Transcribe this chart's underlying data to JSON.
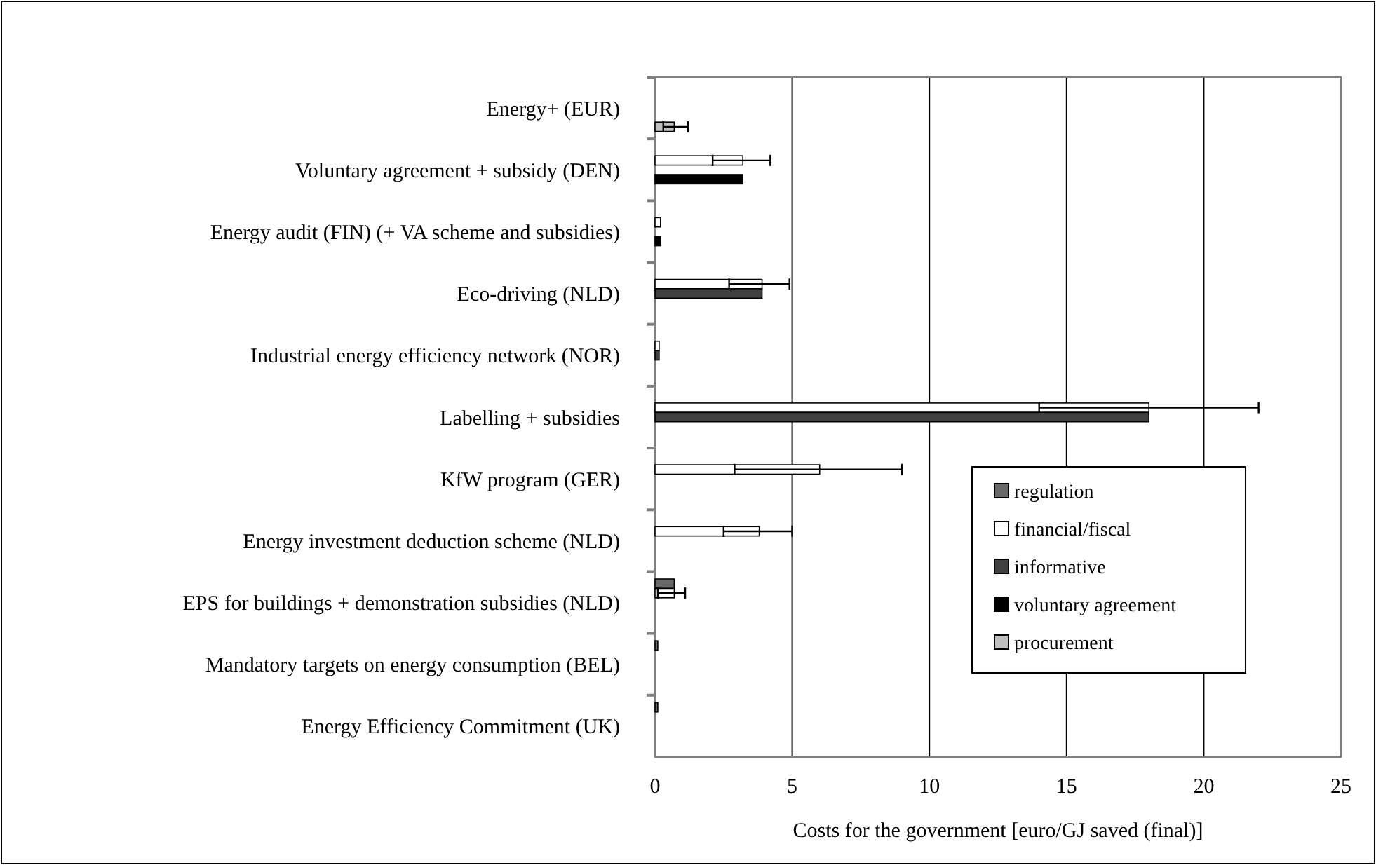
{
  "chart_data": {
    "type": "bar",
    "orientation": "horizontal",
    "xlabel": "Costs for the government [euro/GJ saved (final)]",
    "categories": [
      "Energy+ (EUR)",
      "Voluntary agreement + subsidy (DEN)",
      "Energy audit (FIN) (+ VA scheme and subsidies)",
      "Eco-driving (NLD)",
      "Industrial energy efficiency network (NOR)",
      "Labelling + subsidies",
      "KfW program (GER)",
      "Energy investment deduction scheme (NLD)",
      "EPS for buildings + demonstration subsidies (NLD)",
      "Mandatory targets on energy consumption (BEL)",
      "Energy Efficiency Commitment  (UK)"
    ],
    "series": [
      {
        "name": "regulation",
        "color": "#696969",
        "values": [
          null,
          null,
          null,
          null,
          null,
          null,
          null,
          null,
          0.7,
          0.1,
          0.1
        ]
      },
      {
        "name": "financial/fiscal",
        "color": "#ffffff",
        "values": [
          null,
          3.2,
          0.2,
          3.9,
          0.15,
          18,
          6.0,
          3.8,
          0.7,
          null,
          null
        ],
        "errors": [
          null,
          [
            2.1,
            4.2
          ],
          null,
          [
            2.7,
            4.9
          ],
          null,
          [
            14,
            22
          ],
          [
            2.9,
            9.0
          ],
          [
            2.5,
            5.0
          ],
          [
            0.1,
            1.1
          ],
          null,
          null
        ]
      },
      {
        "name": "informative",
        "color": "#404040",
        "values": [
          null,
          null,
          null,
          3.9,
          0.15,
          18,
          null,
          null,
          null,
          null,
          null
        ]
      },
      {
        "name": "voluntary agreement",
        "color": "#000000",
        "values": [
          null,
          3.2,
          0.2,
          null,
          null,
          null,
          null,
          null,
          null,
          null,
          null
        ]
      },
      {
        "name": "procurement",
        "color": "#c0c0c0",
        "values": [
          0.7,
          null,
          null,
          null,
          null,
          null,
          null,
          null,
          null,
          null,
          null
        ],
        "errors": [
          [
            0.3,
            1.2
          ],
          null,
          null,
          null,
          null,
          null,
          null,
          null,
          null,
          null,
          null
        ]
      }
    ],
    "xlim": [
      0,
      25
    ],
    "xticks": [
      0,
      5,
      10,
      15,
      20,
      25
    ],
    "grid": "x",
    "legend": "right"
  }
}
